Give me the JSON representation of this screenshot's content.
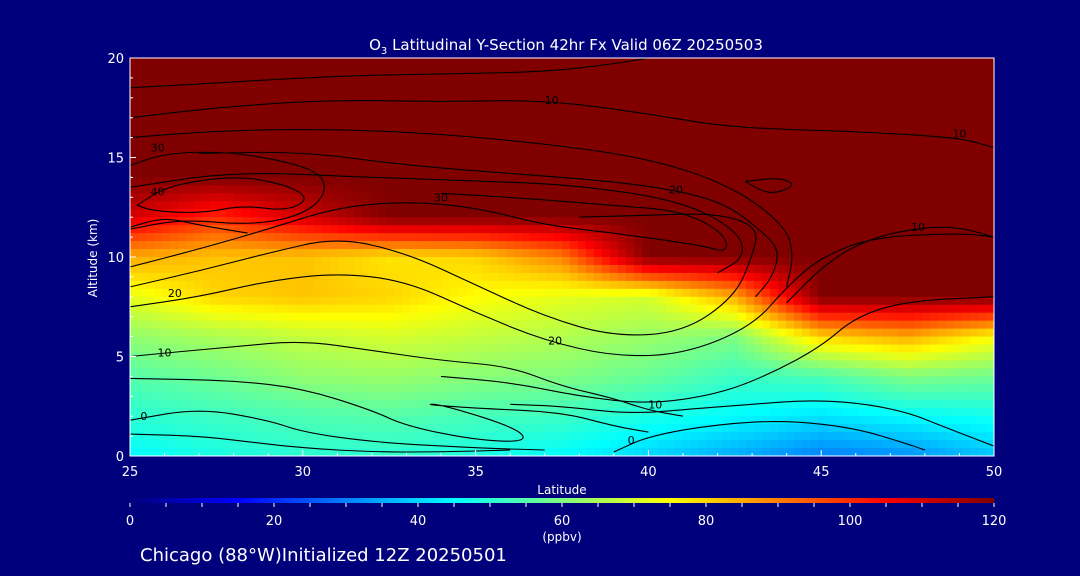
{
  "chart_data": {
    "type": "heatmap",
    "title_parts": {
      "pre": "O",
      "sub": "3",
      "post": " Latitudinal Y-Section 42hr  Fx Valid 06Z 20250503"
    },
    "xlabel": "Latitude",
    "ylabel": "Altitude (km)",
    "xlim": [
      25,
      50
    ],
    "ylim": [
      0,
      20
    ],
    "xticks": [
      25,
      30,
      35,
      40,
      45,
      50
    ],
    "yticks": [
      0,
      5,
      10,
      15,
      20
    ],
    "colorbar": {
      "min": 0,
      "max": 120,
      "ticks": [
        0,
        20,
        40,
        60,
        80,
        100,
        120
      ],
      "unit_label": "(ppbv)",
      "colors": [
        "#00007d",
        "#0000ff",
        "#0080ff",
        "#00ffff",
        "#80ff80",
        "#ffff00",
        "#ff8000",
        "#ff0000",
        "#800000"
      ]
    },
    "ozone_grid": {
      "lat": [
        25,
        27.5,
        30,
        32.5,
        35,
        37.5,
        40,
        42.5,
        45,
        47.5,
        50
      ],
      "alt": [
        0,
        2,
        4,
        6,
        8,
        10,
        12,
        14,
        16,
        18,
        20
      ],
      "values": [
        [
          45,
          48,
          50,
          50,
          48,
          45,
          40,
          35,
          30,
          32,
          38
        ],
        [
          50,
          52,
          54,
          55,
          53,
          52,
          48,
          45,
          42,
          45,
          47
        ],
        [
          55,
          58,
          62,
          63,
          61,
          60,
          57,
          52,
          54,
          60,
          58
        ],
        [
          62,
          65,
          68,
          70,
          68,
          66,
          63,
          60,
          80,
          85,
          75
        ],
        [
          72,
          80,
          82,
          80,
          75,
          72,
          70,
          85,
          120,
          120,
          120
        ],
        [
          85,
          82,
          82,
          78,
          80,
          90,
          120,
          120,
          120,
          120,
          120
        ],
        [
          110,
          100,
          110,
          120,
          120,
          120,
          120,
          120,
          120,
          120,
          120
        ],
        [
          120,
          120,
          120,
          120,
          120,
          120,
          120,
          120,
          120,
          120,
          120
        ],
        [
          120,
          120,
          120,
          120,
          120,
          120,
          120,
          120,
          120,
          120,
          120
        ],
        [
          120,
          120,
          120,
          120,
          120,
          120,
          120,
          120,
          120,
          120,
          120
        ],
        [
          120,
          120,
          120,
          120,
          120,
          120,
          120,
          120,
          120,
          120,
          120
        ]
      ]
    },
    "contours": [
      {
        "points": [
          [
            25,
            1.1
          ],
          [
            27,
            1.0
          ],
          [
            28.5,
            0.7
          ],
          [
            30,
            0.4
          ],
          [
            32,
            0.2
          ],
          [
            34,
            0.2
          ],
          [
            36,
            0.3
          ]
        ]
      },
      {
        "label": "0",
        "label_at": [
          25.4,
          2.0
        ],
        "points": [
          [
            25,
            1.8
          ],
          [
            27,
            2.4
          ],
          [
            29,
            1.8
          ],
          [
            30,
            1.2
          ],
          [
            32,
            0.7
          ],
          [
            35,
            0.4
          ],
          [
            37,
            0.3
          ]
        ]
      },
      {
        "label": "0",
        "label_at": [
          39.5,
          0.8
        ],
        "points": [
          [
            39,
            0.2
          ],
          [
            40,
            1.0
          ],
          [
            42,
            1.6
          ],
          [
            44,
            1.8
          ],
          [
            46,
            1.4
          ],
          [
            47.5,
            0.6
          ],
          [
            48,
            0.3
          ]
        ]
      },
      {
        "points": [
          [
            25,
            3.9
          ],
          [
            28,
            3.8
          ],
          [
            30,
            3.4
          ],
          [
            32,
            2.3
          ],
          [
            33,
            1.5
          ],
          [
            35,
            0.8
          ],
          [
            36.5,
            0.7
          ],
          [
            36.2,
            1.4
          ],
          [
            34,
            2.6
          ],
          [
            33.5,
            2.6
          ],
          [
            35,
            2.4
          ],
          [
            37.5,
            2.2
          ],
          [
            39,
            1.5
          ],
          [
            40,
            1.2
          ]
        ]
      },
      {
        "points": [
          [
            36,
            2.6
          ],
          [
            37.5,
            2.5
          ],
          [
            39.5,
            2.1
          ],
          [
            41.5,
            2.4
          ],
          [
            43,
            2.6
          ],
          [
            44.5,
            2.8
          ],
          [
            46,
            2.7
          ],
          [
            47.5,
            2.2
          ],
          [
            48.5,
            1.5
          ],
          [
            50,
            0.5
          ]
        ]
      },
      {
        "label": "10",
        "label_at": [
          26,
          5.2
        ],
        "points": [
          [
            25,
            5.0
          ],
          [
            28,
            5.5
          ],
          [
            30,
            5.8
          ],
          [
            32,
            5.3
          ],
          [
            34,
            4.8
          ],
          [
            36,
            4.5
          ],
          [
            37.5,
            3.5
          ],
          [
            39,
            2.9
          ],
          [
            40,
            2.3
          ],
          [
            41,
            2.0
          ]
        ]
      },
      {
        "label": "10",
        "label_at": [
          40.2,
          2.6
        ],
        "points": [
          [
            34,
            4.0
          ],
          [
            36,
            3.7
          ],
          [
            38,
            3.0
          ],
          [
            40,
            2.6
          ],
          [
            42,
            3.1
          ],
          [
            43.5,
            4.1
          ],
          [
            45,
            5.5
          ],
          [
            46,
            7.0
          ],
          [
            47.5,
            7.8
          ],
          [
            50,
            8.0
          ]
        ]
      },
      {
        "label": "20",
        "label_at": [
          26.3,
          8.2
        ],
        "points": [
          [
            25,
            7.5
          ],
          [
            27,
            8.0
          ],
          [
            29,
            8.8
          ],
          [
            31,
            9.2
          ],
          [
            33,
            8.8
          ],
          [
            35,
            7.2
          ],
          [
            37,
            5.8
          ],
          [
            39,
            5.0
          ],
          [
            41,
            5.1
          ],
          [
            43,
            6.5
          ],
          [
            44,
            8.5
          ],
          [
            45,
            10.0
          ],
          [
            46.5,
            11.0
          ],
          [
            49,
            11.2
          ],
          [
            50,
            11.0
          ]
        ]
      },
      {
        "label": "20",
        "label_at": [
          37.3,
          5.8
        ],
        "points": [
          [
            25,
            8.5
          ],
          [
            27,
            9.3
          ],
          [
            29,
            10.2
          ],
          [
            31,
            11.0
          ],
          [
            33,
            10.2
          ],
          [
            35,
            8.6
          ],
          [
            37,
            7.0
          ],
          [
            39,
            6.0
          ],
          [
            41,
            6.2
          ],
          [
            42.5,
            8.0
          ],
          [
            43,
            10.0
          ],
          [
            43.2,
            11.5
          ],
          [
            42,
            12.2
          ],
          [
            40,
            12.1
          ],
          [
            38,
            12.0
          ]
        ]
      },
      {
        "label": "30",
        "label_at": [
          34,
          13.0
        ],
        "points": [
          [
            25,
            9.5
          ],
          [
            27,
            10.4
          ],
          [
            29,
            11.4
          ],
          [
            31,
            12.5
          ],
          [
            33,
            12.8
          ],
          [
            35,
            12.5
          ],
          [
            37,
            11.6
          ],
          [
            39,
            11.2
          ],
          [
            41.5,
            10.6
          ],
          [
            42.3,
            10.2
          ],
          [
            42.2,
            11.2
          ],
          [
            41,
            12.3
          ],
          [
            39,
            12.6
          ],
          [
            36,
            13.0
          ],
          [
            34,
            13.2
          ]
        ]
      },
      {
        "label": "20",
        "label_at": [
          40.8,
          13.4
        ],
        "points": [
          [
            27,
            15.2
          ],
          [
            30,
            15.3
          ],
          [
            33,
            14.6
          ],
          [
            36,
            14.2
          ],
          [
            39,
            13.8
          ],
          [
            41,
            13.3
          ],
          [
            42.3,
            12.6
          ],
          [
            43.2,
            11.4
          ],
          [
            43.8,
            10.4
          ],
          [
            43.6,
            9.0
          ],
          [
            43.1,
            8.0
          ]
        ]
      },
      {
        "label": "40",
        "label_at": [
          25.8,
          13.3
        ],
        "points": [
          [
            25.2,
            12.6
          ],
          [
            26.1,
            13.6
          ],
          [
            28.1,
            14.1
          ],
          [
            29.6,
            13.6
          ],
          [
            30.2,
            12.9
          ],
          [
            29.5,
            12.3
          ],
          [
            28.3,
            12.6
          ],
          [
            27.1,
            12.2
          ],
          [
            25.7,
            12.3
          ],
          [
            25.2,
            12.6
          ]
        ]
      },
      {
        "label": "30",
        "label_at": [
          25.8,
          15.5
        ],
        "points": [
          [
            25,
            14.6
          ],
          [
            26,
            15.2
          ],
          [
            27.5,
            15.3
          ],
          [
            29,
            15.0
          ],
          [
            30.5,
            14.3
          ],
          [
            30.7,
            13.2
          ],
          [
            30,
            12.1
          ],
          [
            28.5,
            11.6
          ],
          [
            26.5,
            11.9
          ],
          [
            25,
            11.4
          ]
        ]
      },
      {
        "label": "10",
        "label_at": [
          37.2,
          17.9
        ],
        "points": [
          [
            25,
            17.0
          ],
          [
            28,
            17.6
          ],
          [
            31,
            17.9
          ],
          [
            34,
            17.8
          ],
          [
            37,
            17.9
          ],
          [
            40,
            17.2
          ],
          [
            42,
            16.6
          ],
          [
            44,
            16.4
          ],
          [
            46,
            16.3
          ],
          [
            49,
            16.0
          ],
          [
            50,
            15.5
          ]
        ]
      },
      {
        "label": "10",
        "label_at": [
          49,
          16.2
        ],
        "points": [
          [
            25,
            18.5
          ],
          [
            28,
            18.8
          ],
          [
            31,
            19.1
          ],
          [
            34,
            19.2
          ],
          [
            37,
            19.3
          ],
          [
            39,
            19.7
          ],
          [
            40,
            20.0
          ]
        ]
      },
      {
        "label": "10",
        "label_at": [
          47.8,
          11.5
        ],
        "points": [
          [
            44,
            7.7
          ],
          [
            45.2,
            9.8
          ],
          [
            46.5,
            11.0
          ],
          [
            48,
            11.5
          ],
          [
            49,
            11.5
          ],
          [
            50,
            11.0
          ]
        ]
      },
      {
        "points": [
          [
            42.8,
            13.8
          ],
          [
            43.8,
            14.0
          ],
          [
            44.3,
            13.6
          ],
          [
            43.5,
            13.1
          ],
          [
            42.8,
            13.8
          ]
        ]
      },
      {
        "points": [
          [
            25,
            13.5
          ],
          [
            28,
            14.3
          ],
          [
            32,
            14.0
          ],
          [
            35.5,
            13.8
          ],
          [
            38,
            13.6
          ],
          [
            41,
            12.8
          ],
          [
            42.6,
            11.3
          ],
          [
            42.8,
            10.0
          ],
          [
            42.0,
            9.2
          ]
        ]
      },
      {
        "points": [
          [
            25,
            16.0
          ],
          [
            28,
            16.4
          ],
          [
            32,
            16.4
          ],
          [
            36,
            15.9
          ],
          [
            40,
            15.0
          ],
          [
            42.5,
            13.5
          ],
          [
            44,
            11.5
          ],
          [
            44.2,
            10.0
          ],
          [
            44,
            8.5
          ]
        ]
      },
      {
        "points": [
          [
            25,
            11.5
          ],
          [
            26,
            12.0
          ],
          [
            27,
            11.6
          ],
          [
            28.4,
            11.2
          ]
        ]
      }
    ],
    "footer": "Chicago (88°W)Initialized 12Z 20250501"
  }
}
